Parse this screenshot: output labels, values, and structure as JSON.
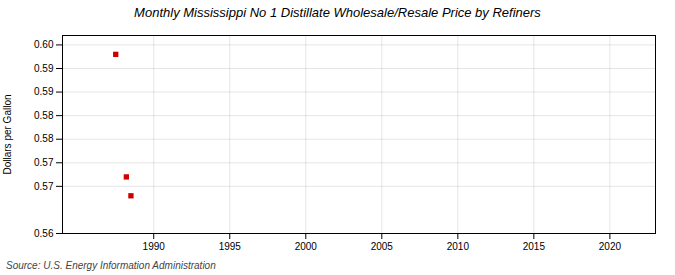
{
  "chart_data": {
    "type": "scatter",
    "title": "Monthly Mississippi No 1 Distillate Wholesale/Resale Price by Refiners",
    "ylabel": "Dollars per Gallon",
    "source": "Source: U.S. Energy Information Administration",
    "x": [
      1987.5,
      1988.2,
      1988.5
    ],
    "values": [
      0.598,
      0.572,
      0.568
    ],
    "color": "#cc0000",
    "marker": "square",
    "xlim": [
      1984,
      2023
    ],
    "ylim": [
      0.56,
      0.602
    ],
    "xticks": [
      1990,
      1995,
      2000,
      2005,
      2010,
      2015,
      2020
    ],
    "yticks": [
      0.56,
      0.57,
      {
        "value": 0.575,
        "label": "0.57"
      },
      0.58,
      {
        "value": 0.585,
        "label": "0.58"
      },
      0.59,
      {
        "value": 0.595,
        "label": "0.59"
      },
      {
        "value": 0.6,
        "label": "0.60"
      }
    ],
    "grid": true
  }
}
